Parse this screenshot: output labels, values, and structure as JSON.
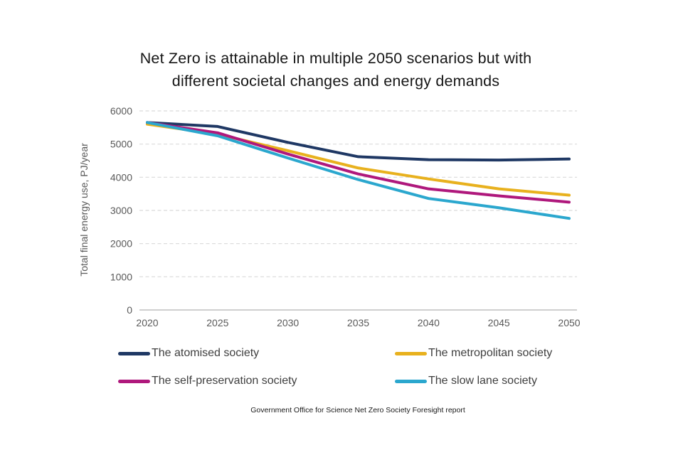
{
  "title": {
    "line1": "Net Zero is attainable in multiple 2050 scenarios but with",
    "line2": "different societal changes and energy demands"
  },
  "footer": "Government Office for Science Net Zero Society Foresight report",
  "colors": {
    "atomised": "#1F3864",
    "metropolitan": "#E8B11E",
    "self_preservation": "#AF187C",
    "slow_lane": "#2BA7CE",
    "gridline": "#D9D9D9",
    "axis_line": "#BFBFBF",
    "tick_text": "#595959"
  },
  "chart_data": {
    "type": "line",
    "title": "Net Zero is attainable in multiple 2050 scenarios but with different societal changes and energy demands",
    "xlabel": "",
    "ylabel": "Total final energy use, PJ/year",
    "categories": [
      "2020",
      "2025",
      "2030",
      "2035",
      "2040",
      "2045",
      "2050"
    ],
    "ylim": [
      0,
      6000
    ],
    "yticks": [
      0,
      1000,
      2000,
      3000,
      4000,
      5000,
      6000
    ],
    "grid": "horizontal-dashed",
    "legend_position": "bottom",
    "series": [
      {
        "name": "The atomised society",
        "color": "#1F3864",
        "values": [
          5650,
          5530,
          5050,
          4620,
          4530,
          4520,
          4550
        ]
      },
      {
        "name": "The metropolitan society",
        "color": "#E8B11E",
        "values": [
          5600,
          5300,
          4800,
          4280,
          3950,
          3650,
          3460
        ]
      },
      {
        "name": "The self-preservation society",
        "color": "#AF187C",
        "values": [
          5650,
          5340,
          4700,
          4100,
          3650,
          3440,
          3250
        ]
      },
      {
        "name": "The slow lane society",
        "color": "#2BA7CE",
        "values": [
          5650,
          5250,
          4580,
          3930,
          3360,
          3080,
          2760
        ]
      }
    ]
  }
}
